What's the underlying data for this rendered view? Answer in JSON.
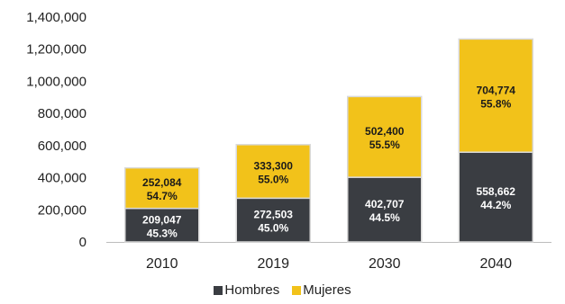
{
  "chart_data": {
    "type": "bar",
    "stacked": true,
    "categories": [
      "2010",
      "2019",
      "2030",
      "2040"
    ],
    "ylim": [
      0,
      1400000
    ],
    "y_ticks": [
      "0",
      "200,000",
      "400,000",
      "600,000",
      "800,000",
      "1,000,000",
      "1,200,000",
      "1,400,000"
    ],
    "series": [
      {
        "name": "Hombres",
        "color": "#3a3d42",
        "values": [
          209047,
          272503,
          402707,
          558662
        ],
        "labels": [
          "209,047",
          "272,503",
          "402,707",
          "558,662"
        ],
        "percents": [
          "45.3%",
          "45.0%",
          "44.5%",
          "44.2%"
        ]
      },
      {
        "name": "Mujeres",
        "color": "#f2c21a",
        "values": [
          252084,
          333300,
          502400,
          704774
        ],
        "labels": [
          "252,084",
          "333,300",
          "502,400",
          "704,774"
        ],
        "percents": [
          "54.7%",
          "55.0%",
          "55.5%",
          "55.8%"
        ]
      }
    ],
    "legend": {
      "position": "bottom"
    },
    "grid": false
  }
}
